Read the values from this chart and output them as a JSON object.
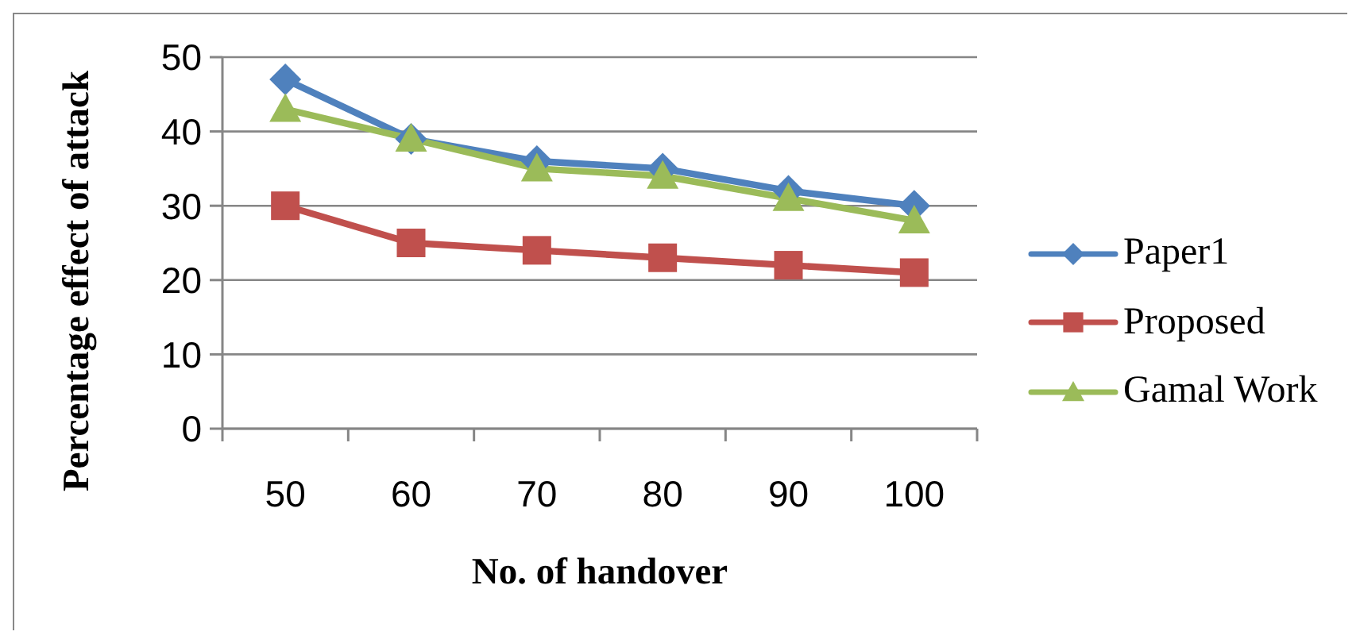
{
  "chart_data": {
    "type": "line",
    "xlabel": "No. of handover",
    "ylabel": "Percentage effect of attack",
    "categories": [
      "50",
      "60",
      "70",
      "80",
      "90",
      "100"
    ],
    "series": [
      {
        "name": "Paper1",
        "color": "#4f81bd",
        "marker": "diamond",
        "values": [
          47,
          39,
          36,
          35,
          32,
          30
        ]
      },
      {
        "name": "Proposed",
        "color": "#c0504d",
        "marker": "square",
        "values": [
          30,
          25,
          24,
          23,
          22,
          21
        ]
      },
      {
        "name": "Gamal Work",
        "color": "#9bbb59",
        "marker": "triangle",
        "values": [
          43,
          39,
          35,
          34,
          31,
          28
        ]
      }
    ],
    "ylim": [
      0,
      50
    ],
    "yticks": [
      0,
      10,
      20,
      30,
      40,
      50
    ],
    "grid": "y",
    "legend": "right"
  }
}
